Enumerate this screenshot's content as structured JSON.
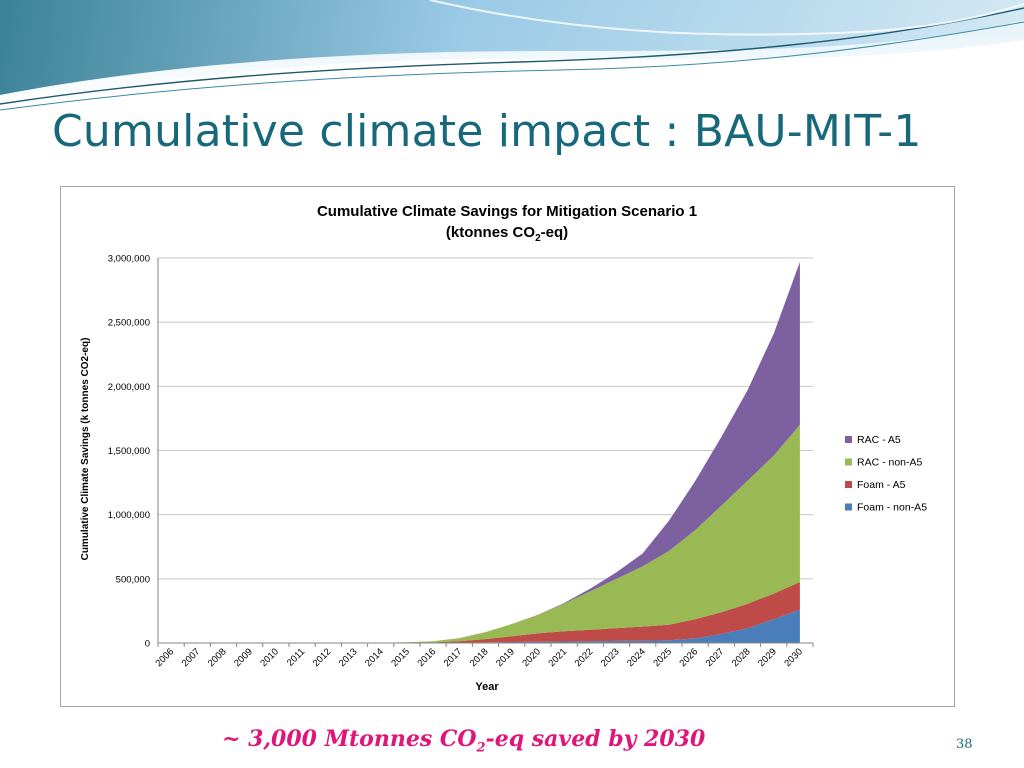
{
  "slide": {
    "title": "Cumulative climate impact : BAU-MIT-1",
    "caption_pre": "~ 3,000 Mtonnes CO",
    "caption_sub": "2",
    "caption_post": "-eq saved by 2030",
    "page_number": "38"
  },
  "colors": {
    "title": "#17687a",
    "caption": "#e0157a",
    "wave_light": "#cfe6f3",
    "wave_mid": "#8dc3e2",
    "wave_dark": "#1e6f86"
  },
  "chart_data": {
    "type": "area",
    "stacked": true,
    "title_line1": "Cumulative Climate Savings for Mitigation Scenario 1",
    "title_line2_pre": "(ktonnes CO",
    "title_line2_sub": "2",
    "title_line2_post": "-eq)",
    "xlabel": "Year",
    "ylabel": "Cumulative Climate Savings (k tonnes CO2-eq)",
    "ylim": [
      0,
      3000000
    ],
    "yticks": [
      0,
      500000,
      1000000,
      1500000,
      2000000,
      2500000,
      3000000
    ],
    "ytick_labels": [
      "0",
      "500,000",
      "1,000,000",
      "1,500,000",
      "2,000,000",
      "2,500,000",
      "3,000,000"
    ],
    "grid": "horizontal",
    "legend_position": "right",
    "x": [
      "2006",
      "2007",
      "2008",
      "2009",
      "2010",
      "2011",
      "2012",
      "2013",
      "2014",
      "2015",
      "2016",
      "2017",
      "2018",
      "2019",
      "2020",
      "2021",
      "2022",
      "2023",
      "2024",
      "2025",
      "2026",
      "2027",
      "2028",
      "2029",
      "2030"
    ],
    "series": [
      {
        "name": "Foam - non-A5",
        "color": "#4a7ebb",
        "values": [
          0,
          0,
          0,
          0,
          0,
          0,
          0,
          0,
          0,
          0,
          1000,
          3000,
          5000,
          8000,
          10000,
          12000,
          14000,
          16000,
          18000,
          22000,
          35000,
          70000,
          115000,
          185000,
          260000
        ]
      },
      {
        "name": "Foam - A5",
        "color": "#be4b48",
        "values": [
          0,
          0,
          0,
          0,
          0,
          0,
          0,
          0,
          0,
          2000,
          4000,
          10000,
          25000,
          45000,
          65000,
          80000,
          90000,
          100000,
          110000,
          120000,
          150000,
          170000,
          190000,
          200000,
          215000
        ]
      },
      {
        "name": "RAC - non-A5",
        "color": "#98b954",
        "values": [
          0,
          0,
          0,
          0,
          0,
          0,
          0,
          0,
          2000,
          4000,
          8000,
          25000,
          55000,
          95000,
          145000,
          215000,
          300000,
          385000,
          470000,
          575000,
          695000,
          830000,
          960000,
          1075000,
          1225000
        ]
      },
      {
        "name": "RAC - A5",
        "color": "#7d60a0",
        "values": [
          0,
          0,
          0,
          0,
          0,
          0,
          0,
          0,
          0,
          0,
          0,
          0,
          0,
          0,
          0,
          5000,
          20000,
          50000,
          100000,
          235000,
          380000,
          535000,
          705000,
          950000,
          1270000
        ]
      }
    ],
    "legend_order": [
      "RAC - A5",
      "RAC - non-A5",
      "Foam - A5",
      "Foam - non-A5"
    ]
  }
}
